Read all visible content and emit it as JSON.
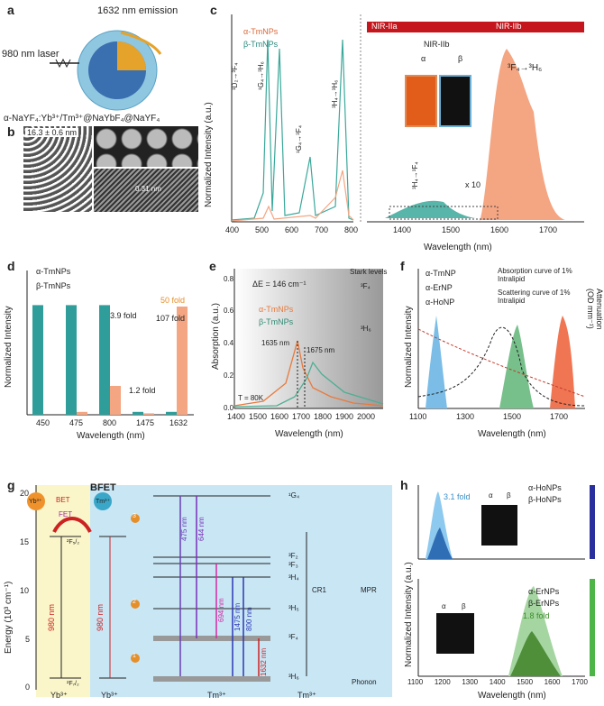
{
  "panel_labels": {
    "a": "a",
    "b": "b",
    "c": "c",
    "d": "d",
    "e": "e",
    "f": "f",
    "g": "g",
    "h": "h"
  },
  "panel_a": {
    "emission_label": "1632 nm emission",
    "laser_label": "980 nm laser",
    "formula": "α-NaYF₄:Yb³⁺/Tm³⁺@NaYbF₄@NaYF₄",
    "colors": {
      "core": "#e6a32b",
      "shell1": "#3a6fb0",
      "shell2": "#9fd0e8"
    }
  },
  "panel_b": {
    "size_label": "16.3 ± 0.6 nm",
    "lattice_label": "0.31 nm"
  },
  "panel_c": {
    "legend": [
      "α-TmNPs",
      "β-TmNPs"
    ],
    "band_labels": [
      "NIR-IIa",
      "NIR-IIb"
    ],
    "inset_title": "NIR-IIb",
    "inset_alpha": "α",
    "inset_beta": "β",
    "peak_labels": {
      "p450": "¹D₂→³F₄",
      "p475": "¹G₄→³H₆",
      "p644": "¹G₄→³F₄",
      "p800": "³H₄→³H₆",
      "p1475": "³H₄→³F₄",
      "p1632": "³F₄→³H₆"
    },
    "times_ten": "x 10",
    "ylabel": "Normalized Intensity (a.u.)",
    "xlabel": "Wavelength (nm)",
    "xticks_left": [
      "400",
      "500",
      "600",
      "700",
      "800"
    ],
    "xticks_right": [
      "1400",
      "1500",
      "1600",
      "1700"
    ],
    "colors": {
      "alpha": "#f4a582",
      "beta": "#3aa89a"
    }
  },
  "panel_d": {
    "legend": [
      "α-TmNPs",
      "β-TmNPs"
    ],
    "ylabel": "Normalized Intensity",
    "xlabel": "Wavelength (nm)",
    "annotations": [
      "3.9 fold",
      "1.2 fold",
      "50 fold",
      "107 fold"
    ],
    "chart_data": {
      "type": "bar",
      "categories": [
        "450",
        "475",
        "800",
        "1475",
        "1632"
      ],
      "series": [
        {
          "name": "α-TmNPs",
          "values": [
            0.0,
            0.02,
            0.2,
            0.01,
            0.75
          ]
        },
        {
          "name": "β-TmNPs",
          "values": [
            0.76,
            0.76,
            0.76,
            0.02,
            0.02
          ]
        }
      ],
      "ylim": [
        0,
        1
      ]
    }
  },
  "panel_e": {
    "delta_e": "ΔE = 146 cm⁻¹",
    "stark": "Stark levels",
    "level_f4": "³F₄",
    "level_h6": "³H₆",
    "legend": [
      "α-TmNPs",
      "β-TmNPs"
    ],
    "peak1": "1635 nm",
    "peak2": "1675 nm",
    "temp": "T = 80K",
    "ylabel": "Absorption (a.u.)",
    "xlabel": "Wavelength (nm)",
    "yticks": [
      "0.0",
      "0.2",
      "0.4",
      "0.6",
      "0.8"
    ],
    "xticks": [
      "1400",
      "1500",
      "1600",
      "1700",
      "1800",
      "1900",
      "2000"
    ]
  },
  "panel_f": {
    "legend": [
      "α-TmNP",
      "α-ErNP",
      "α-HoNP"
    ],
    "legend2": [
      "Absorption curve of 1% Intralipid",
      "Scattering curve of 1% Intralipid"
    ],
    "ylabel": "Normalized Intensity",
    "ylabel_right": "Attenuation (OD mm⁻¹)",
    "xlabel": "Wavelength (nm)",
    "xticks": [
      "1100",
      "1300",
      "1500",
      "1700"
    ]
  },
  "panel_g": {
    "title": "BFET",
    "bet": "BET",
    "fet": "FET",
    "yb": "Yb³⁺",
    "tm": "Tm³⁺",
    "ylabel": "Energy (10³ cm⁻¹)",
    "yticks": [
      "0",
      "5",
      "10",
      "15",
      "20"
    ],
    "wavelengths": [
      "475 nm",
      "644 nm",
      "694 nm",
      "1475 nm",
      "800 nm",
      "1632 nm",
      "980 nm",
      "980 nm"
    ],
    "levels": [
      "¹G₄",
      "³F₂",
      "³F₃",
      "³H₄",
      "³H₅",
      "³F₄",
      "³H₆",
      "²F₅/₂",
      "²F₇/₂"
    ],
    "cr1": "CR1",
    "mpr": "MPR",
    "phonon": "Phonon",
    "bottom": [
      "Yb³⁺",
      "Yb³⁺",
      "Tm³⁺",
      "Tm³⁺"
    ],
    "circle_nums": [
      "1",
      "2",
      "3"
    ]
  },
  "panel_h": {
    "legend_top": [
      "α-HoNPs",
      "β-HoNPs"
    ],
    "legend_bot": [
      "α-ErNPs",
      "β-ErNPs"
    ],
    "fold_top": "3.1 fold",
    "fold_bot": "1.8 fold",
    "alpha": "α",
    "beta": "β",
    "ylabel": "Normalized Intensity (a.u.)",
    "xlabel": "Wavelength (nm)",
    "yticks": [
      "0.0",
      "0.2",
      "0.4",
      "0.6",
      "0.8",
      "1.0"
    ],
    "xticks": [
      "1100",
      "1200",
      "1300",
      "1400",
      "1500",
      "1600",
      "1700"
    ]
  }
}
